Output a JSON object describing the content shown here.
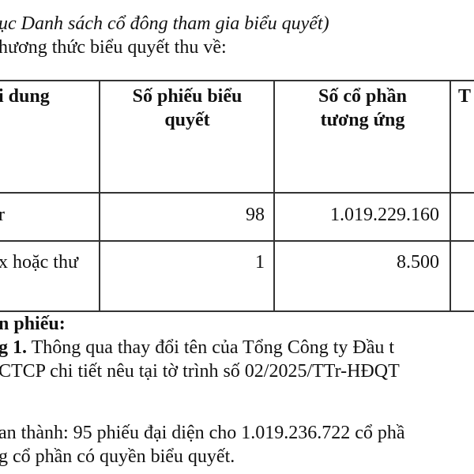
{
  "intro": {
    "line1": "ục Danh sách cổ đông tham gia biểu quyết)",
    "line2": "hương thức biểu quyết thu về:"
  },
  "table": {
    "headers": {
      "col1": "i dung",
      "col2_l1": "Số phiếu biểu",
      "col2_l2": "quyết",
      "col3_l1": "Số cổ phần",
      "col3_l2": "tương ứng",
      "col4": "T"
    },
    "rows": [
      {
        "label": "r",
        "votes": "98",
        "shares": "1.019.229.160"
      },
      {
        "label": "x hoặc thư",
        "votes": "1",
        "shares": "8.500"
      }
    ]
  },
  "body": {
    "heading": "n phiếu:",
    "item_label": "g 1.",
    "item_text": " Thông qua thay đổi tên của Tổng Công ty Đầu t",
    "item_line2": "CTCP chi tiết nêu tại tờ trình số 02/2025/TTr-HĐQT",
    "approve_line1": "an thành: 95 phiếu đại diện cho 1.019.236.722 cổ phầ",
    "approve_line2": "g cổ phần có quyền biểu quyết."
  }
}
